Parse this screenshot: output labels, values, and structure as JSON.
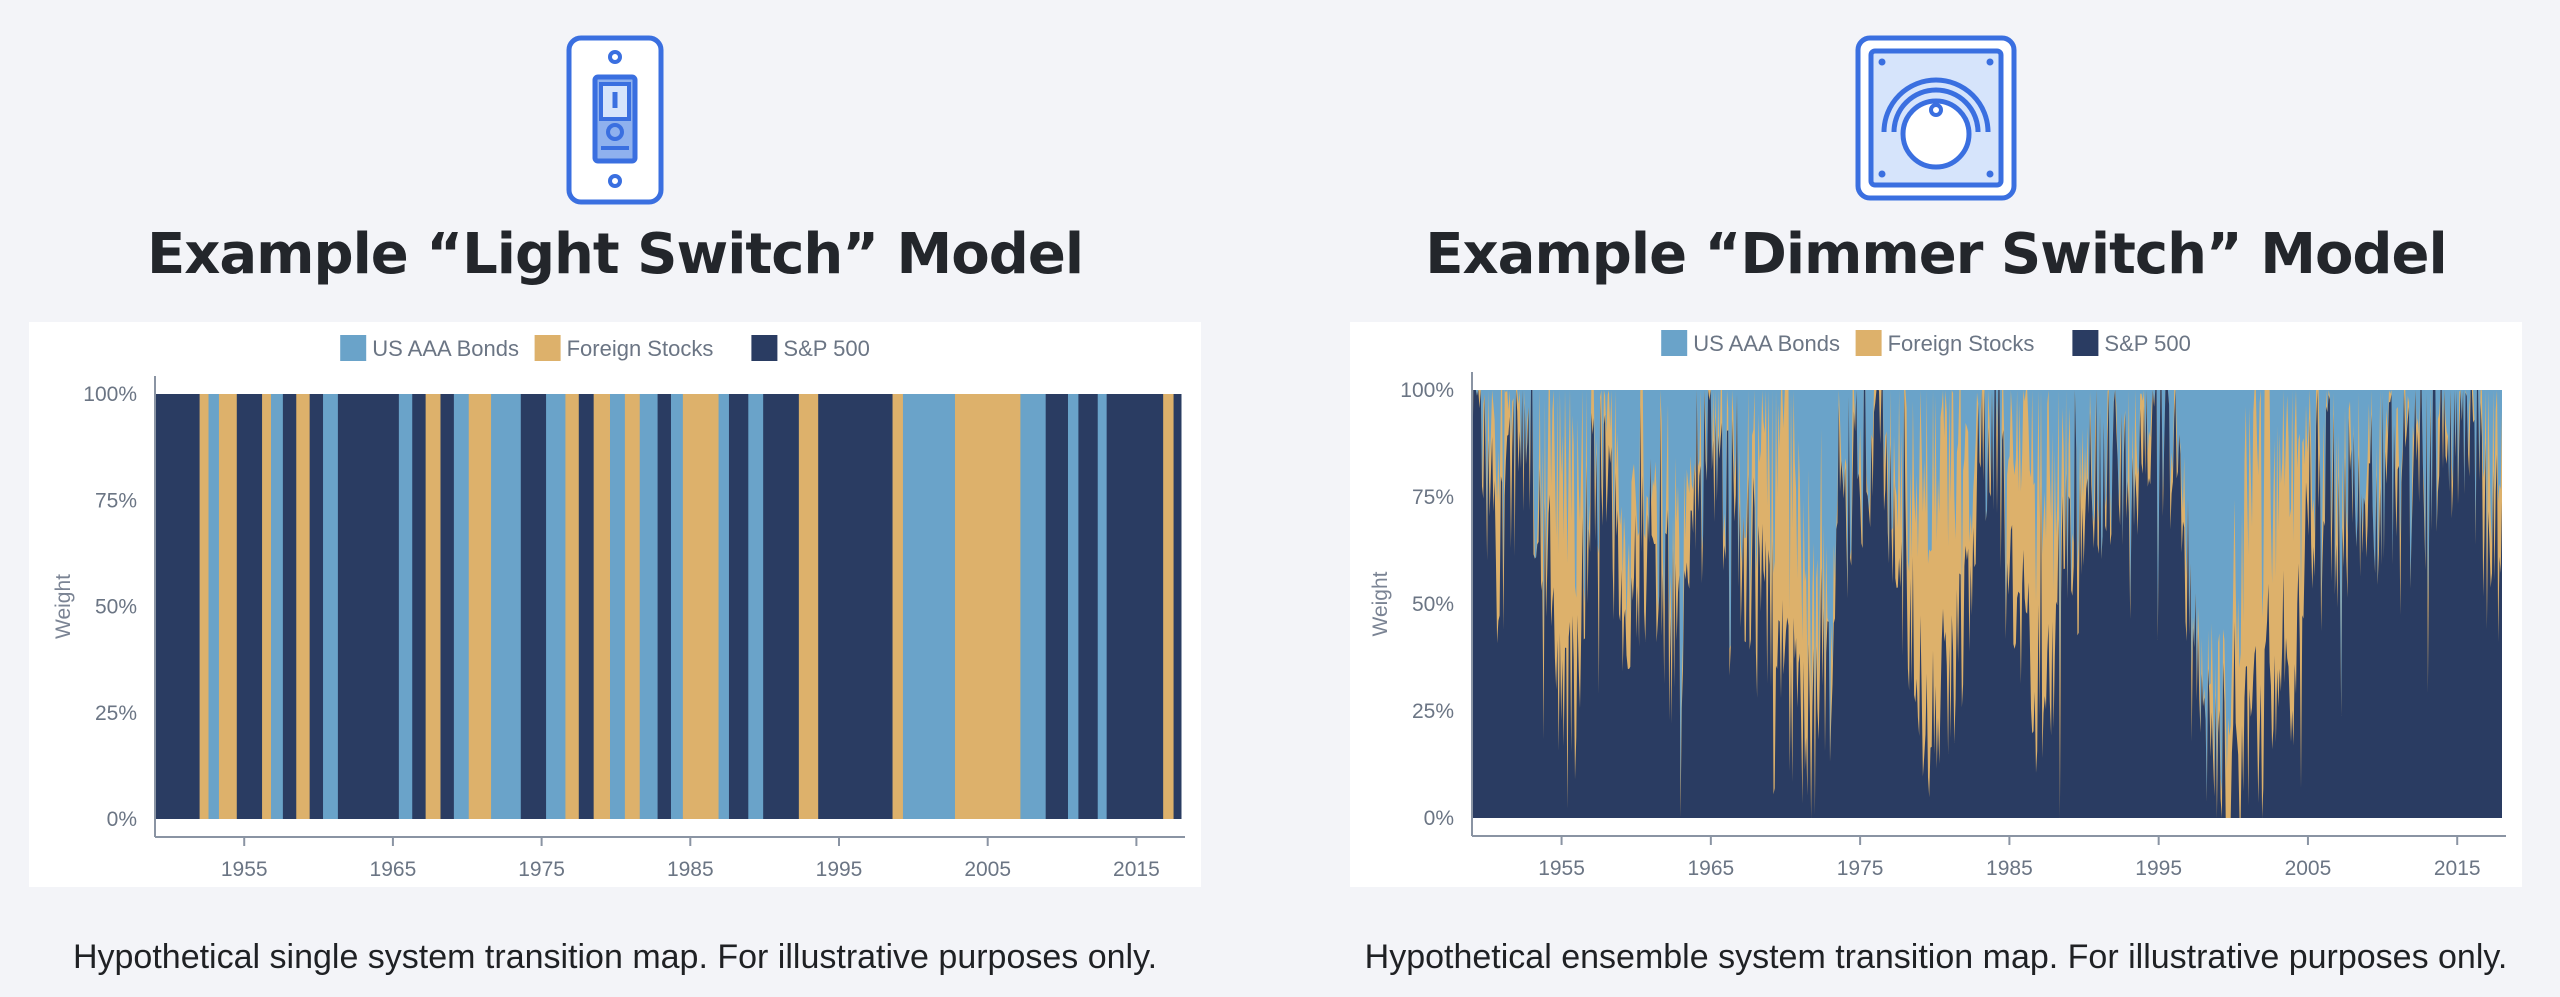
{
  "colors": {
    "bonds": "#6aa3c9",
    "foreign": "#ddb16b",
    "sp500": "#2a3c62",
    "icon_stroke": "#3a6fe0",
    "icon_fill": "#d6e4fb",
    "icon_mid": "#8fb1ee"
  },
  "panels": [
    {
      "icon": "light-switch-icon",
      "title": "Example “Light Switch” Model",
      "caption": "Hypothetical single system transition map. For illustrative purposes only."
    },
    {
      "icon": "dimmer-switch-icon",
      "title": "Example “Dimmer Switch” Model",
      "caption": "Hypothetical ensemble system transition map. For illustrative purposes only."
    }
  ],
  "chart_data": [
    {
      "type": "area",
      "stacked": true,
      "title": "",
      "xlabel": "",
      "ylabel": "Weight",
      "xlim": [
        1949,
        2018
      ],
      "ylim": [
        0,
        100
      ],
      "x_ticks": [
        "1955",
        "1965",
        "1975",
        "1985",
        "1995",
        "2005",
        "2015"
      ],
      "y_ticks": [
        "0%",
        "25%",
        "50%",
        "75%",
        "100%"
      ],
      "legend": [
        "US AAA Bonds",
        "Foreign Stocks",
        "S&P 500"
      ],
      "legend_position": "top",
      "regimes": [
        {
          "start": 1949.0,
          "end": 1952.0,
          "asset": "S&P 500"
        },
        {
          "start": 1952.0,
          "end": 1952.6,
          "asset": "Foreign Stocks"
        },
        {
          "start": 1952.6,
          "end": 1953.3,
          "asset": "US AAA Bonds"
        },
        {
          "start": 1953.3,
          "end": 1954.5,
          "asset": "Foreign Stocks"
        },
        {
          "start": 1954.5,
          "end": 1956.2,
          "asset": "S&P 500"
        },
        {
          "start": 1956.2,
          "end": 1956.8,
          "asset": "Foreign Stocks"
        },
        {
          "start": 1956.8,
          "end": 1957.6,
          "asset": "US AAA Bonds"
        },
        {
          "start": 1957.6,
          "end": 1958.5,
          "asset": "S&P 500"
        },
        {
          "start": 1958.5,
          "end": 1959.4,
          "asset": "Foreign Stocks"
        },
        {
          "start": 1959.4,
          "end": 1960.3,
          "asset": "S&P 500"
        },
        {
          "start": 1960.3,
          "end": 1961.3,
          "asset": "US AAA Bonds"
        },
        {
          "start": 1961.3,
          "end": 1962.3,
          "asset": "S&P 500"
        },
        {
          "start": 1962.3,
          "end": 1965.4,
          "asset": "S&P 500"
        },
        {
          "start": 1965.4,
          "end": 1966.3,
          "asset": "US AAA Bonds"
        },
        {
          "start": 1966.3,
          "end": 1967.2,
          "asset": "S&P 500"
        },
        {
          "start": 1967.2,
          "end": 1968.2,
          "asset": "Foreign Stocks"
        },
        {
          "start": 1968.2,
          "end": 1969.1,
          "asset": "S&P 500"
        },
        {
          "start": 1969.1,
          "end": 1970.1,
          "asset": "US AAA Bonds"
        },
        {
          "start": 1970.1,
          "end": 1971.6,
          "asset": "Foreign Stocks"
        },
        {
          "start": 1971.6,
          "end": 1973.6,
          "asset": "US AAA Bonds"
        },
        {
          "start": 1973.6,
          "end": 1975.3,
          "asset": "S&P 500"
        },
        {
          "start": 1975.3,
          "end": 1976.6,
          "asset": "US AAA Bonds"
        },
        {
          "start": 1976.6,
          "end": 1977.5,
          "asset": "Foreign Stocks"
        },
        {
          "start": 1977.5,
          "end": 1978.5,
          "asset": "S&P 500"
        },
        {
          "start": 1978.5,
          "end": 1979.6,
          "asset": "Foreign Stocks"
        },
        {
          "start": 1979.6,
          "end": 1980.6,
          "asset": "US AAA Bonds"
        },
        {
          "start": 1980.6,
          "end": 1981.6,
          "asset": "Foreign Stocks"
        },
        {
          "start": 1981.6,
          "end": 1982.8,
          "asset": "US AAA Bonds"
        },
        {
          "start": 1982.8,
          "end": 1983.7,
          "asset": "S&P 500"
        },
        {
          "start": 1983.7,
          "end": 1984.5,
          "asset": "US AAA Bonds"
        },
        {
          "start": 1984.5,
          "end": 1986.9,
          "asset": "Foreign Stocks"
        },
        {
          "start": 1986.9,
          "end": 1987.6,
          "asset": "US AAA Bonds"
        },
        {
          "start": 1987.6,
          "end": 1988.9,
          "asset": "S&P 500"
        },
        {
          "start": 1988.9,
          "end": 1989.9,
          "asset": "US AAA Bonds"
        },
        {
          "start": 1989.9,
          "end": 1992.3,
          "asset": "S&P 500"
        },
        {
          "start": 1992.3,
          "end": 1993.6,
          "asset": "Foreign Stocks"
        },
        {
          "start": 1993.6,
          "end": 1998.6,
          "asset": "S&P 500"
        },
        {
          "start": 1998.6,
          "end": 1999.3,
          "asset": "Foreign Stocks"
        },
        {
          "start": 1999.3,
          "end": 2002.8,
          "asset": "US AAA Bonds"
        },
        {
          "start": 2002.8,
          "end": 2007.2,
          "asset": "Foreign Stocks"
        },
        {
          "start": 2007.2,
          "end": 2008.9,
          "asset": "US AAA Bonds"
        },
        {
          "start": 2008.9,
          "end": 2010.4,
          "asset": "S&P 500"
        },
        {
          "start": 2010.4,
          "end": 2011.1,
          "asset": "US AAA Bonds"
        },
        {
          "start": 2011.1,
          "end": 2012.4,
          "asset": "S&P 500"
        },
        {
          "start": 2012.4,
          "end": 2013.0,
          "asset": "US AAA Bonds"
        },
        {
          "start": 2013.0,
          "end": 2016.8,
          "asset": "S&P 500"
        },
        {
          "start": 2016.8,
          "end": 2017.5,
          "asset": "Foreign Stocks"
        },
        {
          "start": 2017.5,
          "end": 2018.0,
          "asset": "S&P 500"
        }
      ]
    },
    {
      "type": "area",
      "stacked": true,
      "title": "",
      "xlabel": "",
      "ylabel": "Weight",
      "xlim": [
        1949,
        2018
      ],
      "ylim": [
        0,
        100
      ],
      "x_ticks": [
        "1955",
        "1965",
        "1975",
        "1985",
        "1995",
        "2005",
        "2015"
      ],
      "y_ticks": [
        "0%",
        "25%",
        "50%",
        "75%",
        "100%"
      ],
      "legend": [
        "US AAA Bonds",
        "Foreign Stocks",
        "S&P 500"
      ],
      "legend_position": "top",
      "series": [
        {
          "name": "S&P 500",
          "values": [
            95,
            80,
            60,
            85,
            85,
            65,
            20,
            30,
            85,
            80,
            55,
            50,
            70,
            55,
            40,
            85,
            88,
            78,
            65,
            55,
            45,
            30,
            25,
            18,
            35,
            78,
            85,
            85,
            80,
            55,
            30,
            25,
            30,
            45,
            85,
            95,
            60,
            40,
            30,
            40,
            70,
            72,
            80,
            85,
            80,
            90,
            95,
            78,
            60,
            30,
            10,
            10,
            15,
            25,
            40,
            35,
            70,
            85,
            70,
            75,
            70,
            80,
            80,
            88,
            82,
            92,
            92,
            90,
            65,
            62
          ]
        },
        {
          "name": "Foreign Stocks",
          "values": [
            3,
            12,
            30,
            5,
            5,
            25,
            60,
            40,
            5,
            10,
            20,
            20,
            10,
            10,
            15,
            5,
            4,
            8,
            10,
            20,
            35,
            55,
            40,
            25,
            10,
            8,
            5,
            5,
            8,
            25,
            55,
            60,
            55,
            35,
            8,
            2,
            25,
            45,
            50,
            40,
            10,
            8,
            5,
            5,
            5,
            3,
            2,
            5,
            5,
            5,
            10,
            20,
            55,
            60,
            45,
            55,
            20,
            5,
            5,
            5,
            5,
            5,
            5,
            5,
            8,
            3,
            3,
            3,
            20,
            20
          ]
        },
        {
          "name": "US AAA Bonds",
          "values": [
            2,
            8,
            10,
            10,
            10,
            10,
            20,
            30,
            10,
            10,
            25,
            30,
            20,
            35,
            45,
            10,
            8,
            14,
            25,
            25,
            20,
            15,
            35,
            57,
            55,
            14,
            10,
            10,
            12,
            20,
            15,
            15,
            15,
            20,
            7,
            3,
            15,
            15,
            20,
            20,
            20,
            20,
            15,
            10,
            15,
            7,
            3,
            17,
            35,
            65,
            80,
            70,
            30,
            15,
            15,
            10,
            10,
            10,
            25,
            20,
            25,
            15,
            15,
            7,
            10,
            5,
            5,
            7,
            15,
            18
          ]
        }
      ]
    }
  ]
}
